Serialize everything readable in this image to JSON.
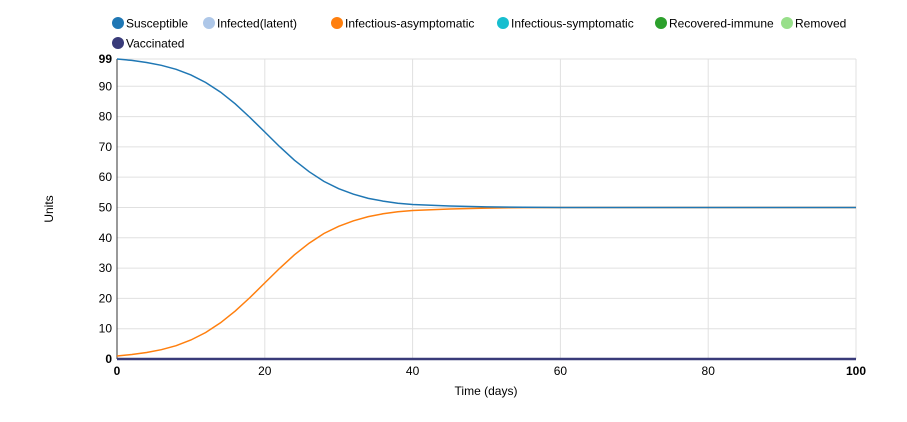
{
  "chart_data": {
    "type": "line",
    "title": "",
    "xlabel": "Time (days)",
    "ylabel": "Units",
    "xlim": [
      0,
      100
    ],
    "ylim": [
      0,
      99
    ],
    "xticks": [
      0,
      20,
      40,
      60,
      80,
      100
    ],
    "yticks": [
      0,
      10,
      20,
      30,
      40,
      50,
      60,
      70,
      80,
      90,
      99
    ],
    "grid": true,
    "legend_position": "top",
    "x": [
      0,
      2,
      4,
      6,
      8,
      10,
      12,
      14,
      16,
      18,
      20,
      22,
      24,
      26,
      28,
      30,
      32,
      34,
      36,
      38,
      40,
      45,
      50,
      55,
      60,
      70,
      80,
      90,
      100
    ],
    "series": [
      {
        "name": "Susceptible",
        "color": "#1f77b4",
        "values": [
          99,
          98.53,
          97.86,
          96.92,
          95.6,
          93.74,
          91.26,
          88.07,
          84.2,
          79.7,
          74.9,
          70.1,
          65.6,
          61.8,
          58.6,
          56.2,
          54.4,
          53.0,
          52.1,
          51.4,
          51.0,
          50.5,
          50.2,
          50.05,
          50,
          50,
          50,
          50,
          50
        ]
      },
      {
        "name": "Infected(latent)",
        "color": "#aec7e8",
        "values": [
          0,
          0,
          0,
          0,
          0,
          0,
          0,
          0,
          0,
          0,
          0,
          0,
          0,
          0,
          0,
          0,
          0,
          0,
          0,
          0,
          0,
          0,
          0,
          0,
          0,
          0,
          0,
          0,
          0
        ]
      },
      {
        "name": "Infectious-asymptomatic",
        "color": "#ff7f0e",
        "values": [
          1,
          1.47,
          2.14,
          3.08,
          4.4,
          6.26,
          8.74,
          11.93,
          15.8,
          20.3,
          25.1,
          29.9,
          34.4,
          38.2,
          41.4,
          43.8,
          45.6,
          47.0,
          47.9,
          48.6,
          49.0,
          49.5,
          49.8,
          49.95,
          50,
          50,
          50,
          50,
          50
        ]
      },
      {
        "name": "Infectious-symptomatic",
        "color": "#17becf",
        "values": [
          0,
          0,
          0,
          0,
          0,
          0,
          0,
          0,
          0,
          0,
          0,
          0,
          0,
          0,
          0,
          0,
          0,
          0,
          0,
          0,
          0,
          0,
          0,
          0,
          0,
          0,
          0,
          0,
          0
        ]
      },
      {
        "name": "Recovered-immune",
        "color": "#2ca02c",
        "values": [
          0,
          0,
          0,
          0,
          0,
          0,
          0,
          0,
          0,
          0,
          0,
          0,
          0,
          0,
          0,
          0,
          0,
          0,
          0,
          0,
          0,
          0,
          0,
          0,
          0,
          0,
          0,
          0,
          0
        ]
      },
      {
        "name": "Removed",
        "color": "#98df8a",
        "values": [
          0,
          0,
          0,
          0,
          0,
          0,
          0,
          0,
          0,
          0,
          0,
          0,
          0,
          0,
          0,
          0,
          0,
          0,
          0,
          0,
          0,
          0,
          0,
          0,
          0,
          0,
          0,
          0,
          0
        ]
      },
      {
        "name": "Vaccinated",
        "color": "#393b79",
        "values": [
          0,
          0,
          0,
          0,
          0,
          0,
          0,
          0,
          0,
          0,
          0,
          0,
          0,
          0,
          0,
          0,
          0,
          0,
          0,
          0,
          0,
          0,
          0,
          0,
          0,
          0,
          0,
          0,
          0
        ]
      }
    ]
  }
}
